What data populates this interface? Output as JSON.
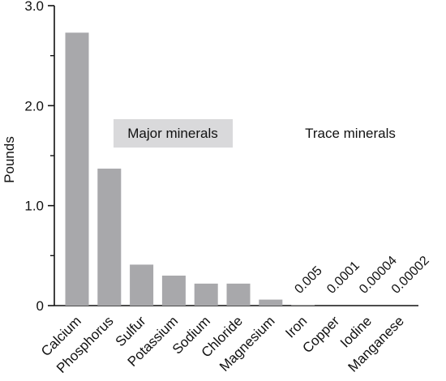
{
  "chart_data": {
    "type": "bar",
    "ylabel": "Pounds",
    "ylim": [
      0,
      3.0
    ],
    "yticks": [
      {
        "value": 0,
        "label": "0"
      },
      {
        "value": 1.0,
        "label": "1.0"
      },
      {
        "value": 2.0,
        "label": "2.0"
      },
      {
        "value": 3.0,
        "label": "3.0"
      }
    ],
    "categories": [
      "Calcium",
      "Phosphorus",
      "Sulfur",
      "Potassium",
      "Sodium",
      "Chloride",
      "Magnesium",
      "Iron",
      "Copper",
      "Iodine",
      "Manganese"
    ],
    "values": [
      2.73,
      1.37,
      0.41,
      0.3,
      0.22,
      0.22,
      0.06,
      0.005,
      0.0001,
      4e-05,
      2e-05
    ],
    "value_labels": [
      "",
      "",
      "",
      "",
      "",
      "",
      "",
      "0.005",
      "0.0001",
      "0.00004",
      "0.00002"
    ],
    "groups": {
      "major": "Major minerals",
      "trace": "Trace minerals"
    },
    "colors": {
      "bar": "#a8a8ab",
      "group_box": "#d9d9db",
      "axis": "#111111"
    }
  }
}
